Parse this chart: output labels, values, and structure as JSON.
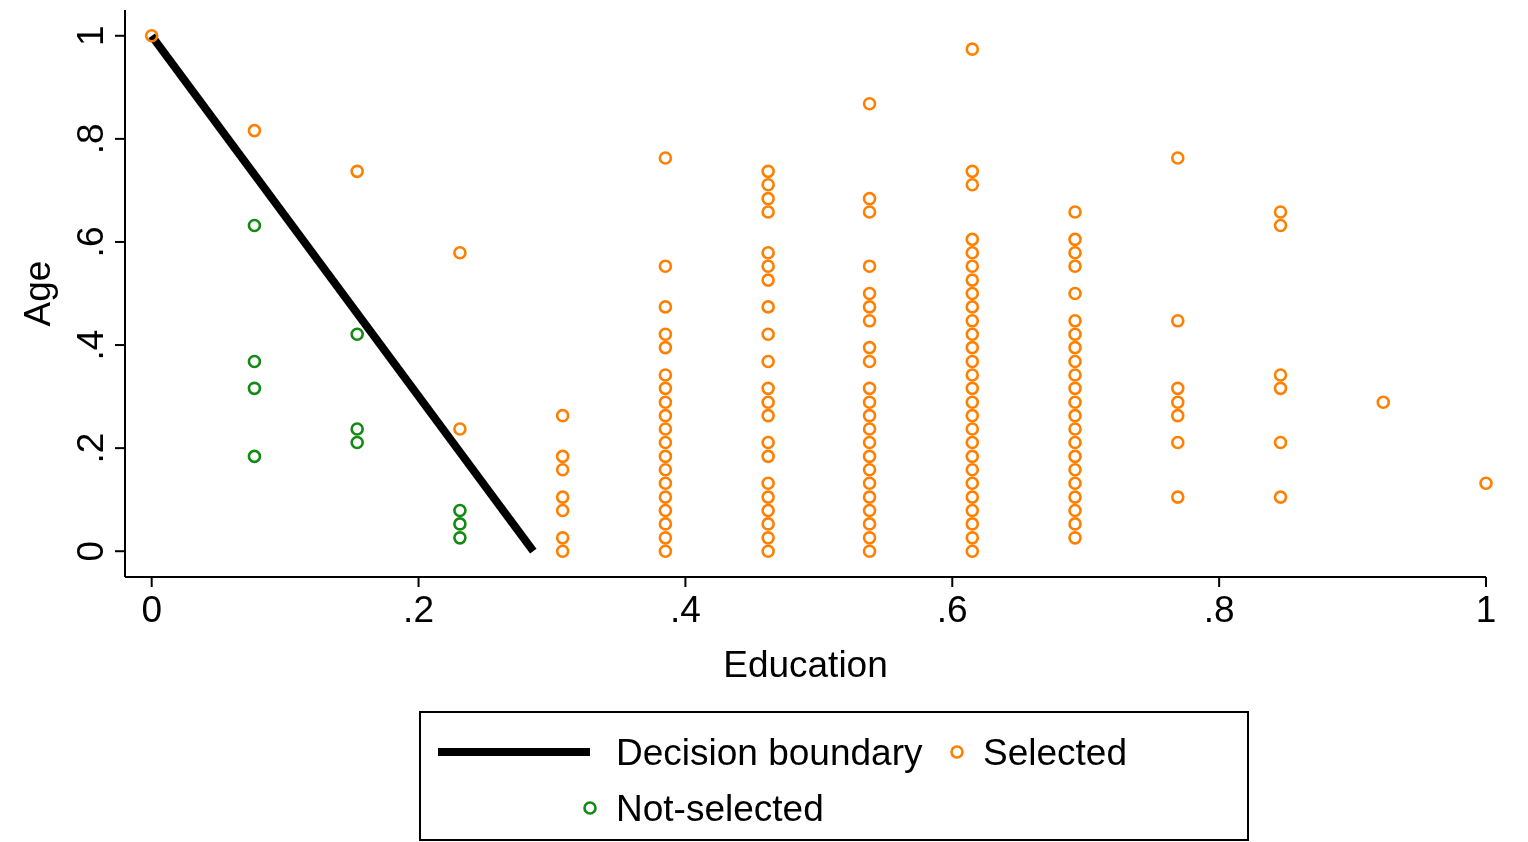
{
  "chart_data": {
    "type": "scatter",
    "xlabel": "Education",
    "ylabel": "Age",
    "xlim": [
      -0.02,
      1
    ],
    "ylim": [
      -0.05,
      1.05
    ],
    "xticks": [
      0,
      {
        "value": 0.2,
        "label": ".2"
      },
      {
        "value": 0.4,
        "label": ".4"
      },
      {
        "value": 0.6,
        "label": ".6"
      },
      {
        "value": 0.8,
        "label": ".8"
      },
      1
    ],
    "yticks": [
      0,
      {
        "value": 0.2,
        "label": ".2"
      },
      {
        "value": 0.4,
        "label": ".4"
      },
      {
        "value": 0.6,
        "label": ".6"
      },
      {
        "value": 0.8,
        "label": ".8"
      },
      1
    ],
    "grid": false,
    "legend": "bottom",
    "marker": "circle",
    "series": [
      {
        "name": "Decision boundary",
        "type": "line",
        "marker": "none",
        "color": "#000000",
        "x": [
          0,
          0.286
        ],
        "values": [
          1,
          0
        ]
      },
      {
        "name": "Selected",
        "color": "#ff8000",
        "x": [
          0,
          0.077,
          0.154,
          0.231,
          0.231,
          0.308,
          0.308,
          0.308,
          0.308,
          0.308,
          0.308,
          0.308,
          0.385,
          0.385,
          0.385,
          0.385,
          0.385,
          0.385,
          0.385,
          0.385,
          0.385,
          0.385,
          0.385,
          0.385,
          0.385,
          0.385,
          0.385,
          0.385,
          0.385,
          0.385,
          0.385,
          0.462,
          0.462,
          0.462,
          0.462,
          0.462,
          0.462,
          0.462,
          0.462,
          0.462,
          0.462,
          0.462,
          0.462,
          0.462,
          0.462,
          0.462,
          0.462,
          0.462,
          0.462,
          0.462,
          0.462,
          0.462,
          0.538,
          0.538,
          0.538,
          0.538,
          0.538,
          0.538,
          0.538,
          0.538,
          0.538,
          0.538,
          0.538,
          0.538,
          0.538,
          0.538,
          0.538,
          0.538,
          0.538,
          0.538,
          0.538,
          0.538,
          0.538,
          0.538,
          0.615,
          0.615,
          0.615,
          0.615,
          0.615,
          0.615,
          0.615,
          0.615,
          0.615,
          0.615,
          0.615,
          0.615,
          0.615,
          0.615,
          0.615,
          0.615,
          0.615,
          0.615,
          0.615,
          0.615,
          0.615,
          0.615,
          0.615,
          0.615,
          0.615,
          0.615,
          0.615,
          0.692,
          0.692,
          0.692,
          0.692,
          0.692,
          0.692,
          0.692,
          0.692,
          0.692,
          0.692,
          0.692,
          0.692,
          0.692,
          0.692,
          0.692,
          0.692,
          0.692,
          0.692,
          0.692,
          0.692,
          0.692,
          0.692,
          0.769,
          0.769,
          0.769,
          0.769,
          0.769,
          0.769,
          0.769,
          0.846,
          0.846,
          0.846,
          0.846,
          0.846,
          0.846,
          0.923,
          1
        ],
        "values": [
          1,
          0.816,
          0.737,
          0.579,
          0.237,
          0.263,
          0.184,
          0.158,
          0.105,
          0.079,
          0.026,
          0,
          0.763,
          0.553,
          0.474,
          0.421,
          0.395,
          0.342,
          0.316,
          0.289,
          0.263,
          0.237,
          0.211,
          0.184,
          0.158,
          0.132,
          0.105,
          0.079,
          0.053,
          0.026,
          0,
          0.737,
          0.711,
          0.684,
          0.658,
          0.579,
          0.553,
          0.526,
          0.474,
          0.421,
          0.368,
          0.316,
          0.289,
          0.263,
          0.211,
          0.184,
          0.132,
          0.105,
          0.079,
          0.053,
          0.026,
          0,
          0.868,
          0.684,
          0.658,
          0.553,
          0.5,
          0.474,
          0.447,
          0.395,
          0.368,
          0.316,
          0.289,
          0.263,
          0.237,
          0.211,
          0.184,
          0.158,
          0.132,
          0.105,
          0.079,
          0.053,
          0.026,
          0,
          0.974,
          0.737,
          0.711,
          0.605,
          0.579,
          0.553,
          0.526,
          0.5,
          0.474,
          0.447,
          0.421,
          0.395,
          0.368,
          0.342,
          0.316,
          0.289,
          0.263,
          0.237,
          0.211,
          0.184,
          0.158,
          0.132,
          0.105,
          0.079,
          0.053,
          0.026,
          0,
          0.658,
          0.605,
          0.579,
          0.553,
          0.5,
          0.447,
          0.421,
          0.395,
          0.368,
          0.342,
          0.316,
          0.289,
          0.263,
          0.237,
          0.211,
          0.184,
          0.158,
          0.132,
          0.105,
          0.079,
          0.053,
          0.026,
          0.763,
          0.447,
          0.316,
          0.289,
          0.263,
          0.211,
          0.105,
          0.658,
          0.632,
          0.342,
          0.316,
          0.211,
          0.105,
          0.289,
          0.132
        ]
      },
      {
        "name": "Not-selected",
        "color": "#138a13",
        "x": [
          0.077,
          0.077,
          0.077,
          0.077,
          0.154,
          0.154,
          0.154,
          0.231,
          0.231,
          0.231
        ],
        "values": [
          0.632,
          0.368,
          0.316,
          0.184,
          0.421,
          0.237,
          0.211,
          0.079,
          0.053,
          0.026
        ]
      }
    ]
  }
}
